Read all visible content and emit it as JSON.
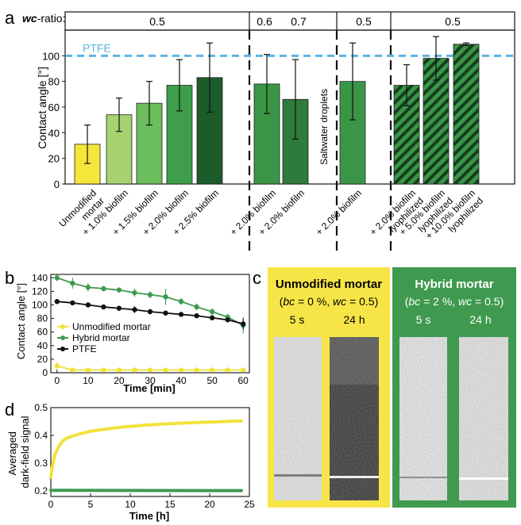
{
  "panel_labels": {
    "a": "a",
    "b": "b",
    "c": "c",
    "d": "d"
  },
  "chart_data": [
    {
      "panel": "a",
      "type": "bar",
      "ylabel": "Contact angle [°]",
      "ylim": [
        0,
        120
      ],
      "yticks": [
        0,
        20,
        40,
        60,
        80,
        100
      ],
      "wc_label_prefix": "wc",
      "wc_label_suffix": "-ratio:",
      "wc_groups": [
        {
          "labels": [
            "0.5"
          ]
        },
        {
          "labels": [
            "0.6",
            "0.7"
          ]
        },
        {
          "labels": [
            "0.5"
          ]
        },
        {
          "labels": [
            "0.5"
          ]
        }
      ],
      "reference": {
        "label": "PTFE",
        "value": 100,
        "color": "#5ab4e5"
      },
      "annotation": "Saltwater droplets",
      "categories": [
        [
          "Unmodified",
          "mortar"
        ],
        [
          "+ 1.0% biofilm"
        ],
        [
          "+ 1.5% biofilm"
        ],
        [
          "+ 2.0% biofilm"
        ],
        [
          "+ 2.5% biofilm"
        ],
        [
          "+ 2.0% biofilm"
        ],
        [
          "+ 2.0% biofilm"
        ],
        [
          "+ 2.0% biofilm"
        ],
        [
          "+ 2.0% biofilm",
          "lyophilized"
        ],
        [
          "+ 5.0% biofilm",
          "lyophilized"
        ],
        [
          "+ 10.0% biofilm",
          "lyophilized"
        ]
      ],
      "values": [
        31,
        54,
        63,
        77,
        83,
        78,
        66,
        80,
        77,
        98,
        109
      ],
      "errors": [
        15,
        13,
        17,
        20,
        27,
        23,
        31,
        30,
        16,
        17,
        1
      ],
      "colors": [
        "#f6e53a",
        "#a6d271",
        "#6cbd5b",
        "#3e9e4b",
        "#1c5c2b",
        "#3a9646",
        "#2e7b3b",
        "#3a9646",
        "#3a9646",
        "#2e7b3b",
        "#1c5c2b"
      ],
      "hatched": [
        false,
        false,
        false,
        false,
        false,
        false,
        false,
        false,
        true,
        true,
        true
      ]
    },
    {
      "panel": "b",
      "type": "line",
      "xlabel": "Time [min]",
      "ylabel": "Contact angle [°]",
      "xlim": [
        -2,
        62
      ],
      "ylim": [
        0,
        145
      ],
      "xticks": [
        0,
        10,
        20,
        30,
        40,
        50,
        60
      ],
      "yticks": [
        0,
        20,
        40,
        60,
        80,
        100,
        120,
        140
      ],
      "legend": "left",
      "series": [
        {
          "name": "Unmodified mortar",
          "color": "#f3e23b",
          "x": [
            0,
            5,
            10,
            15,
            20,
            25,
            30,
            35,
            40,
            45,
            50,
            55,
            60
          ],
          "y": [
            10,
            4,
            4,
            4,
            4,
            4,
            4,
            4,
            4,
            4,
            4,
            4,
            4
          ],
          "err": [
            6,
            2,
            1,
            1,
            1,
            1,
            1,
            1,
            1,
            1,
            1,
            1,
            1
          ]
        },
        {
          "name": "Hybrid mortar",
          "color": "#3f9a4f",
          "x": [
            0,
            5,
            10,
            15,
            20,
            25,
            30,
            35,
            40,
            45,
            50,
            55,
            60
          ],
          "y": [
            140,
            132,
            126,
            124,
            122,
            118,
            115,
            112,
            105,
            97,
            90,
            82,
            70
          ],
          "err": [
            5,
            8,
            6,
            4,
            4,
            6,
            5,
            12,
            5,
            5,
            5,
            5,
            12
          ]
        },
        {
          "name": "PTFE",
          "color": "#111111",
          "x": [
            0,
            5,
            10,
            15,
            20,
            25,
            30,
            35,
            40,
            45,
            50,
            55,
            60
          ],
          "y": [
            105,
            103,
            100,
            97,
            95,
            93,
            90,
            88,
            86,
            84,
            81,
            78,
            72
          ],
          "err": [
            3,
            3,
            3,
            3,
            3,
            5,
            4,
            3,
            3,
            3,
            3,
            3,
            8
          ]
        }
      ]
    },
    {
      "panel": "d",
      "type": "line",
      "xlabel": "Time [h]",
      "ylabel": [
        "Averaged",
        "dark-field signal"
      ],
      "xlim": [
        0,
        25
      ],
      "ylim": [
        0.18,
        0.5
      ],
      "xticks": [
        0,
        5,
        10,
        15,
        20,
        25
      ],
      "yticks": [
        0.2,
        0.3,
        0.4,
        0.5
      ],
      "series": [
        {
          "color": "#f3e23b",
          "x": [
            0,
            0.2,
            0.5,
            1,
            1.5,
            2,
            3,
            4,
            5,
            7,
            9,
            12,
            15,
            18,
            21,
            24
          ],
          "y": [
            0.25,
            0.29,
            0.33,
            0.36,
            0.38,
            0.39,
            0.4,
            0.408,
            0.415,
            0.423,
            0.43,
            0.437,
            0.442,
            0.446,
            0.449,
            0.452
          ]
        },
        {
          "color": "#3f9a4f",
          "x": [
            0,
            24
          ],
          "y": [
            0.202,
            0.201
          ]
        }
      ]
    }
  ],
  "panel_c": {
    "left": {
      "title": "Unmodified mortar",
      "params_bc": "bc",
      "params_bc_val": " = 0 %, ",
      "params_wc": "wc",
      "params_wc_val": " = 0.5)",
      "times": [
        "5 s",
        "24 h"
      ],
      "bg": "#f7e548"
    },
    "right": {
      "title": "Hybrid mortar",
      "params_bc": "bc",
      "params_bc_val": " = 2 %, ",
      "params_wc": "wc",
      "params_wc_val": " = 0.5)",
      "times": [
        "5 s",
        "24 h"
      ],
      "bg": "#3f9a4f"
    }
  }
}
